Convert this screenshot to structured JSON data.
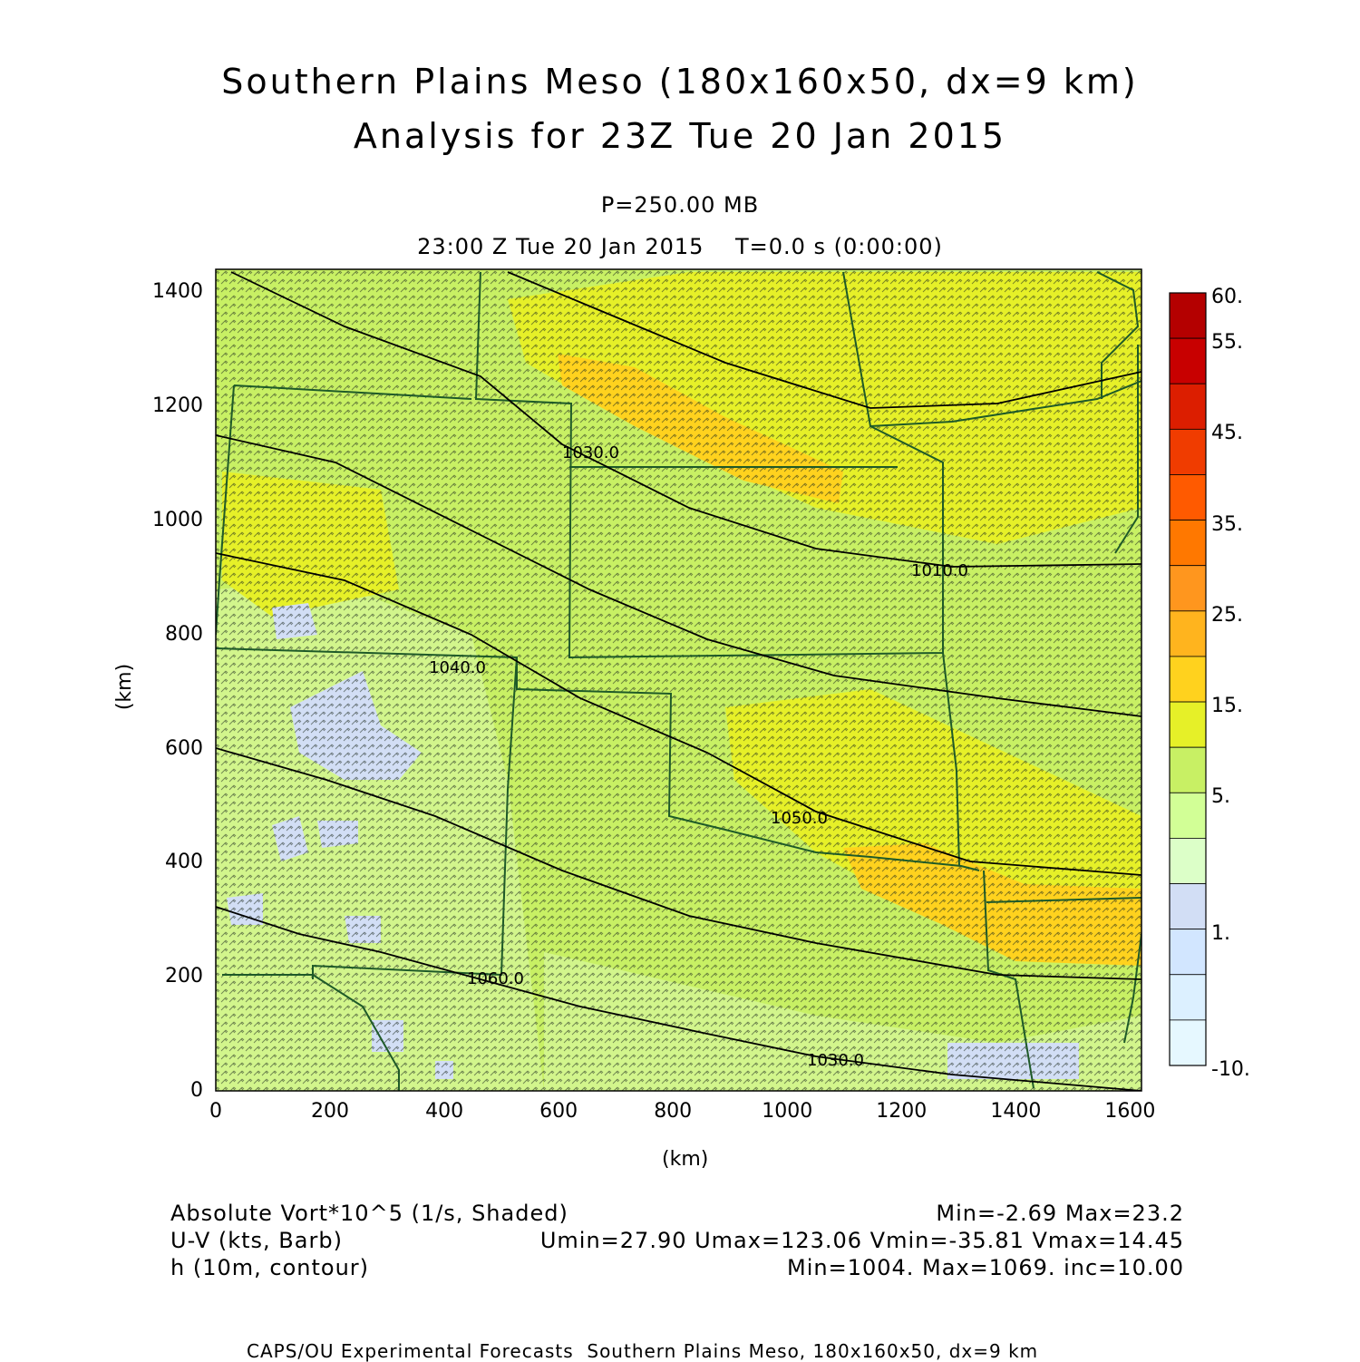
{
  "header": {
    "title_line1": "Southern Plains Meso (180x160x50, dx=9 km)",
    "title_line2": "Analysis for 23Z Tue 20 Jan 2015",
    "pressure_level": "P=250.00 MB",
    "valid_time": "23:00 Z Tue 20 Jan 2015    T=0.0 s (0:00:00)"
  },
  "axes": {
    "x_label": "(km)",
    "y_label": "(km)",
    "x_ticks": [
      "0",
      "200",
      "400",
      "600",
      "800",
      "1000",
      "1200",
      "1400",
      "1600"
    ],
    "y_ticks": [
      "0",
      "200",
      "400",
      "600",
      "800",
      "1000",
      "1200",
      "1400"
    ],
    "x_range": [
      0,
      1620
    ],
    "y_range": [
      0,
      1440
    ]
  },
  "colorbar": {
    "labels": [
      "60.",
      "55.",
      "45.",
      "35.",
      "25.",
      "15.",
      "5.",
      "1.",
      "-10."
    ],
    "colors": [
      "#b40000",
      "#c80000",
      "#dc1e00",
      "#f03c00",
      "#ff5a00",
      "#ff7800",
      "#ff961e",
      "#ffb41e",
      "#ffd21e",
      "#e6f028",
      "#c8f064",
      "#d2ff96",
      "#dcffc8",
      "#d2def5",
      "#d2e6ff",
      "#dcf0ff",
      "#e6f8ff"
    ]
  },
  "map": {
    "shading_colors": {
      "background": "#c8f064",
      "light_green": "#d2f58c",
      "yellow": "#e6f028",
      "orange": "#ffd21e",
      "light_blue": "#d2def5"
    },
    "contour_labels": [
      "1030.0",
      "1040.0",
      "1010.0",
      "1050.0",
      "1060.0",
      "1030.0"
    ]
  },
  "legend": {
    "field1_name": "Absolute Vort*10^5 (1/s, Shaded)",
    "field1_stats": "Min=-2.69 Max=23.2",
    "field2_name": "U-V (kts, Barb)",
    "field2_stats": "Umin=27.90 Umax=123.06 Vmin=-35.81 Vmax=14.45",
    "field3_name": "h (10m, contour)",
    "field3_stats": "Min=1004. Max=1069. inc=10.00"
  },
  "footer": {
    "credit": "CAPS/OU Experimental Forecasts  Southern Plains Meso, 180x160x50, dx=9 km"
  }
}
